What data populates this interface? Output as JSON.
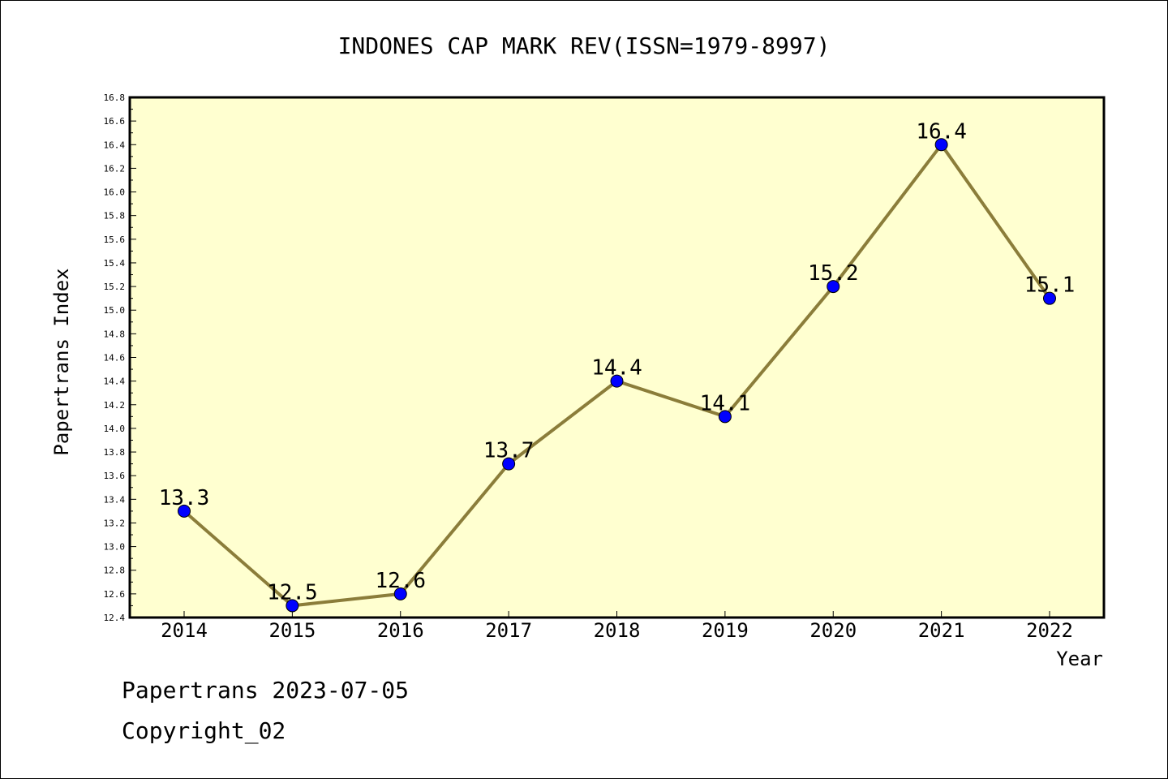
{
  "chart_data": {
    "type": "line",
    "title": "INDONES CAP MARK REV(ISSN=1979-8997)",
    "xlabel": "Year",
    "ylabel": "Papertrans Index",
    "categories": [
      "2014",
      "2015",
      "2016",
      "2017",
      "2018",
      "2019",
      "2020",
      "2021",
      "2022"
    ],
    "series": [
      {
        "values": [
          13.3,
          12.5,
          12.6,
          13.7,
          14.4,
          14.1,
          15.2,
          16.4,
          15.1
        ],
        "labels": [
          "13.3",
          "12.5",
          "12.6",
          "13.7",
          "14.4",
          "14.1",
          "15.2",
          "16.4",
          "15.1"
        ]
      }
    ],
    "ylim": [
      12.4,
      16.8
    ],
    "yticks": [
      "12.4",
      "12.6",
      "12.8",
      "13.0",
      "13.2",
      "13.4",
      "13.6",
      "13.8",
      "14.0",
      "14.2",
      "14.4",
      "14.6",
      "14.8",
      "15.0",
      "15.2",
      "15.4",
      "15.6",
      "15.8",
      "16.0",
      "16.2",
      "16.4",
      "16.6",
      "16.8"
    ],
    "grid": false,
    "legend": "none",
    "colors": {
      "plot_background": "#ffffd0",
      "line": "#8b7d3a",
      "marker": "#0000ff"
    }
  },
  "footer": {
    "line1": "Papertrans 2023-07-05",
    "line2": "Copyright_02"
  }
}
